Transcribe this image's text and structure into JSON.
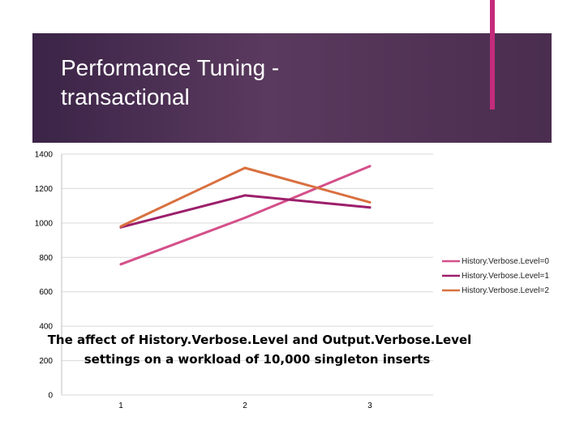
{
  "slide": {
    "title_line1": "Performance Tuning -",
    "title_line2": "transactional"
  },
  "colors": {
    "title_band": "#4a2d4f",
    "accent": "#c42b7b"
  },
  "chart_data": {
    "type": "line",
    "title": "",
    "xlabel": "",
    "ylabel": "",
    "categories": [
      "1",
      "2",
      "3"
    ],
    "ylim": [
      0,
      1400
    ],
    "yticks": [
      0,
      200,
      400,
      600,
      800,
      1000,
      1200,
      1400
    ],
    "grid": "horizontal",
    "legend_position": "right",
    "series": [
      {
        "name": "History.Verbose.Level=0",
        "color": "#d4508a",
        "values": [
          760,
          1030,
          1330
        ]
      },
      {
        "name": "History.Verbose.Level=1",
        "color": "#9c1f6b",
        "values": [
          975,
          1160,
          1090
        ]
      },
      {
        "name": "History.Verbose.Level=2",
        "color": "#d9703f",
        "values": [
          980,
          1320,
          1120
        ]
      }
    ],
    "annotation": {
      "line1": "The affect of History.Verbose.Level and Output.Verbose.Level",
      "line2": "settings on a workload of 10,000 singleton inserts"
    }
  }
}
